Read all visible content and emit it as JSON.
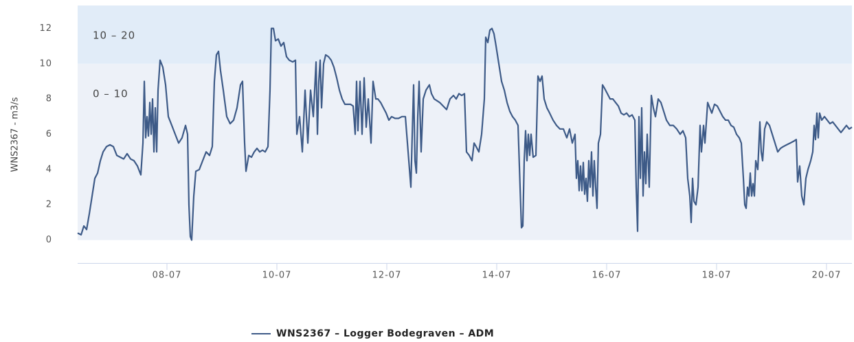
{
  "chart_data": {
    "type": "line",
    "y_axis_label": "WNS2367 - m3/s",
    "xlim": [
      6.375,
      20.463
    ],
    "xticks": [
      {
        "value": 8,
        "label": "08-07"
      },
      {
        "value": 10,
        "label": "10-07"
      },
      {
        "value": 12,
        "label": "12-07"
      },
      {
        "value": 14,
        "label": "14-07"
      },
      {
        "value": 16,
        "label": "16-07"
      },
      {
        "value": 18,
        "label": "18-07"
      },
      {
        "value": 20,
        "label": "20-07"
      }
    ],
    "ylim": [
      -1.3,
      13.3
    ],
    "yticks": [
      0,
      2,
      4,
      6,
      8,
      10,
      12
    ],
    "plot_bands": [
      {
        "from": 0,
        "to": 10,
        "label": "0 – 10",
        "color": "#edf1f8"
      },
      {
        "from": 10,
        "to": 20,
        "label": "10 – 20",
        "color": "#e1ecf8"
      }
    ],
    "legend": "bottom",
    "series": [
      {
        "name": "WNS2367 – Logger Bodegraven – ADM",
        "color": "#3d5a87",
        "x": [
          6.375,
          6.438,
          6.488,
          6.538,
          6.588,
          6.638,
          6.688,
          6.738,
          6.788,
          6.838,
          6.9,
          6.963,
          7.025,
          7.088,
          7.15,
          7.213,
          7.275,
          7.338,
          7.4,
          7.463,
          7.525,
          7.563,
          7.588,
          7.613,
          7.638,
          7.663,
          7.688,
          7.713,
          7.738,
          7.763,
          7.788,
          7.813,
          7.838,
          7.875,
          7.925,
          7.975,
          8.025,
          8.088,
          8.15,
          8.213,
          8.275,
          8.338,
          8.375,
          8.4,
          8.425,
          8.45,
          8.488,
          8.525,
          8.588,
          8.65,
          8.713,
          8.775,
          8.825,
          8.863,
          8.9,
          8.938,
          8.975,
          9.025,
          9.088,
          9.15,
          9.213,
          9.275,
          9.338,
          9.375,
          9.413,
          9.438,
          9.488,
          9.538,
          9.588,
          9.638,
          9.688,
          9.738,
          9.788,
          9.838,
          9.875,
          9.9,
          9.938,
          9.975,
          10.025,
          10.075,
          10.125,
          10.175,
          10.225,
          10.288,
          10.338,
          10.363,
          10.413,
          10.463,
          10.513,
          10.563,
          10.613,
          10.663,
          10.713,
          10.738,
          10.763,
          10.788,
          10.813,
          10.85,
          10.888,
          10.938,
          10.988,
          11.038,
          11.088,
          11.138,
          11.188,
          11.238,
          11.288,
          11.338,
          11.388,
          11.425,
          11.45,
          11.475,
          11.513,
          11.55,
          11.588,
          11.625,
          11.663,
          11.713,
          11.75,
          11.8,
          11.838,
          11.888,
          11.938,
          11.988,
          12.038,
          12.088,
          12.15,
          12.213,
          12.275,
          12.338,
          12.388,
          12.438,
          12.463,
          12.488,
          12.513,
          12.538,
          12.563,
          12.588,
          12.625,
          12.663,
          12.713,
          12.775,
          12.813,
          12.863,
          12.913,
          12.963,
          13.025,
          13.088,
          13.15,
          13.213,
          13.263,
          13.313,
          13.363,
          13.413,
          13.45,
          13.5,
          13.55,
          13.588,
          13.625,
          13.675,
          13.725,
          13.775,
          13.8,
          13.838,
          13.875,
          13.913,
          13.95,
          13.988,
          14.038,
          14.088,
          14.138,
          14.188,
          14.238,
          14.288,
          14.338,
          14.388,
          14.425,
          14.45,
          14.475,
          14.5,
          14.525,
          14.55,
          14.575,
          14.6,
          14.625,
          14.663,
          14.713,
          14.75,
          14.788,
          14.825,
          14.863,
          14.913,
          14.963,
          15.025,
          15.088,
          15.15,
          15.213,
          15.275,
          15.325,
          15.375,
          15.425,
          15.45,
          15.475,
          15.5,
          15.525,
          15.55,
          15.575,
          15.6,
          15.625,
          15.65,
          15.675,
          15.7,
          15.725,
          15.75,
          15.775,
          15.8,
          15.825,
          15.85,
          15.888,
          15.925,
          15.963,
          16.013,
          16.063,
          16.113,
          16.163,
          16.213,
          16.263,
          16.313,
          16.363,
          16.413,
          16.463,
          16.513,
          16.538,
          16.563,
          16.588,
          16.613,
          16.638,
          16.663,
          16.688,
          16.713,
          16.738,
          16.775,
          16.813,
          16.85,
          16.888,
          16.938,
          16.988,
          17.038,
          17.088,
          17.15,
          17.213,
          17.275,
          17.338,
          17.388,
          17.438,
          17.475,
          17.513,
          17.538,
          17.563,
          17.588,
          17.625,
          17.663,
          17.7,
          17.725,
          17.763,
          17.788,
          17.838,
          17.875,
          17.913,
          17.963,
          18.013,
          18.063,
          18.113,
          18.163,
          18.213,
          18.263,
          18.313,
          18.363,
          18.413,
          18.45,
          18.488,
          18.513,
          18.538,
          18.563,
          18.588,
          18.613,
          18.638,
          18.663,
          18.688,
          18.713,
          18.75,
          18.788,
          18.813,
          18.838,
          18.875,
          18.913,
          18.963,
          19.013,
          19.063,
          19.113,
          19.163,
          19.213,
          19.275,
          19.338,
          19.4,
          19.45,
          19.475,
          19.513,
          19.55,
          19.588,
          19.625,
          19.663,
          19.713,
          19.75,
          19.775,
          19.8,
          19.825,
          19.85,
          19.875,
          19.913,
          19.963,
          20.013,
          20.063,
          20.113,
          20.163,
          20.213,
          20.263,
          20.313,
          20.363,
          20.413,
          20.463
        ],
        "values": [
          0.4,
          0.3,
          0.8,
          0.6,
          1.5,
          2.5,
          3.5,
          3.8,
          4.5,
          5.0,
          5.3,
          5.4,
          5.3,
          4.8,
          4.7,
          4.6,
          4.9,
          4.6,
          4.5,
          4.2,
          3.7,
          5.5,
          9.0,
          5.8,
          7.0,
          5.9,
          7.8,
          6.0,
          8.0,
          5.0,
          7.5,
          5.0,
          8.5,
          10.2,
          9.8,
          8.8,
          7.0,
          6.5,
          6.0,
          5.5,
          5.8,
          6.5,
          6.0,
          2.0,
          0.2,
          0.0,
          2.5,
          3.9,
          4.0,
          4.5,
          5.0,
          4.8,
          5.3,
          9.0,
          10.5,
          10.7,
          9.6,
          8.5,
          7.0,
          6.6,
          6.8,
          7.5,
          8.8,
          9.0,
          5.5,
          3.9,
          4.8,
          4.7,
          5.0,
          5.2,
          5.0,
          5.1,
          5.0,
          5.3,
          8.5,
          12.0,
          12.0,
          11.3,
          11.4,
          11.0,
          11.2,
          10.4,
          10.2,
          10.1,
          10.2,
          6.0,
          7.0,
          5.0,
          8.5,
          5.5,
          8.5,
          7.0,
          10.1,
          6.0,
          9.0,
          10.2,
          7.5,
          10.0,
          10.5,
          10.4,
          10.2,
          9.8,
          9.2,
          8.5,
          8.0,
          7.7,
          7.7,
          7.7,
          7.6,
          6.0,
          9.0,
          6.2,
          9.0,
          6.0,
          9.2,
          6.4,
          8.0,
          5.5,
          9.0,
          8.0,
          8.0,
          7.8,
          7.5,
          7.2,
          6.8,
          7.0,
          6.9,
          6.9,
          7.0,
          7.0,
          5.0,
          3.0,
          6.0,
          8.8,
          4.5,
          3.8,
          7.0,
          9.0,
          5.0,
          8.0,
          8.5,
          8.8,
          8.3,
          8.0,
          7.9,
          7.8,
          7.6,
          7.4,
          8.0,
          8.2,
          8.0,
          8.3,
          8.2,
          8.3,
          5.0,
          4.8,
          4.5,
          5.5,
          5.3,
          5.0,
          6.0,
          8.0,
          11.5,
          11.2,
          11.9,
          12.0,
          11.7,
          11.0,
          10.0,
          9.0,
          8.5,
          7.8,
          7.3,
          7.0,
          6.8,
          6.5,
          3.0,
          0.7,
          0.8,
          4.5,
          6.2,
          4.5,
          6.0,
          4.8,
          6.0,
          4.7,
          4.8,
          9.3,
          9.0,
          9.3,
          8.0,
          7.5,
          7.2,
          6.8,
          6.5,
          6.3,
          6.3,
          5.8,
          6.3,
          5.5,
          6.0,
          3.5,
          4.5,
          2.8,
          4.2,
          2.8,
          4.4,
          2.6,
          3.5,
          2.2,
          4.5,
          3.0,
          5.0,
          2.5,
          4.5,
          3.0,
          1.8,
          5.5,
          6.0,
          8.8,
          8.6,
          8.3,
          8.0,
          8.0,
          7.8,
          7.6,
          7.2,
          7.1,
          7.2,
          7.0,
          7.1,
          6.8,
          3.0,
          0.5,
          7.0,
          3.5,
          7.5,
          2.5,
          5.0,
          3.2,
          6.0,
          3.0,
          8.2,
          7.5,
          7.0,
          8.0,
          7.8,
          7.3,
          6.8,
          6.5,
          6.5,
          6.3,
          6.0,
          6.2,
          5.8,
          3.5,
          2.5,
          1.0,
          3.5,
          2.2,
          2.0,
          3.0,
          6.5,
          5.0,
          6.5,
          5.5,
          7.8,
          7.5,
          7.2,
          7.7,
          7.6,
          7.3,
          7.0,
          6.8,
          6.8,
          6.5,
          6.4,
          6.0,
          5.8,
          5.5,
          3.5,
          2.0,
          1.8,
          3.0,
          2.5,
          3.8,
          2.5,
          3.2,
          2.5,
          4.5,
          4.0,
          6.7,
          5.0,
          4.5,
          6.3,
          6.7,
          6.5,
          6.0,
          5.5,
          5.0,
          5.2,
          5.3,
          5.4,
          5.5,
          5.6,
          5.7,
          3.3,
          4.2,
          2.5,
          2.0,
          3.5,
          4.0,
          4.5,
          5.0,
          6.5,
          5.7,
          7.2,
          5.8,
          7.2,
          6.8,
          7.0,
          6.8,
          6.6,
          6.7,
          6.5,
          6.3,
          6.1,
          6.3,
          6.5,
          6.3,
          6.4
        ]
      }
    ]
  }
}
